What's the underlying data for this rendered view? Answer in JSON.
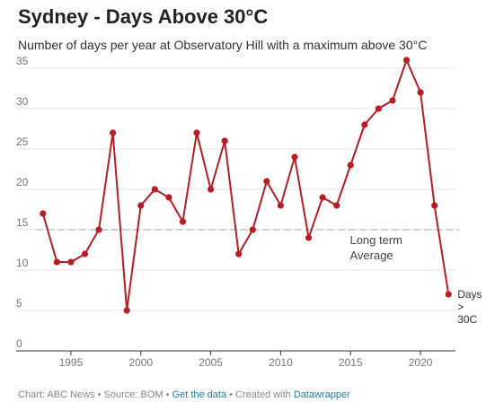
{
  "header": {
    "title": "Sydney - Days Above 30°C",
    "subtitle": "Number of days per year at Observatory Hill with a maximum above 30°C"
  },
  "footer": {
    "prefix": "Chart: ABC News • Source: BOM • ",
    "get_data": "Get the data",
    "middle": " • Created with ",
    "datawrapper": "Datawrapper"
  },
  "colors": {
    "line": "#b71d22",
    "reference": "#d0d0d0",
    "grid": "#e4e4e4",
    "link": "#1d81a2"
  },
  "chart_data": {
    "type": "line",
    "title": "Sydney - Days Above 30°C",
    "subtitle": "Number of days per year at Observatory Hill with a maximum above 30°C",
    "x": [
      1993,
      1994,
      1995,
      1996,
      1997,
      1998,
      1999,
      2000,
      2001,
      2002,
      2003,
      2004,
      2005,
      2006,
      2007,
      2008,
      2009,
      2010,
      2011,
      2012,
      2013,
      2014,
      2015,
      2016,
      2017,
      2018,
      2019,
      2020,
      2021,
      2022
    ],
    "series": [
      {
        "name": "Days > 30C",
        "values": [
          17,
          11,
          11,
          12,
          15,
          27,
          5,
          18,
          20,
          19,
          16,
          27,
          20,
          26,
          12,
          15,
          21,
          18,
          24,
          14,
          19,
          18,
          23,
          28,
          30,
          31,
          36,
          32,
          18,
          7
        ]
      }
    ],
    "reference_line": {
      "value": 15,
      "label_lines": [
        "Long term",
        "Average"
      ]
    },
    "end_label_lines": [
      "Days",
      ">",
      "30C"
    ],
    "xlim": [
      1992.5,
      2022.5
    ],
    "ylim": [
      0,
      35
    ],
    "x_ticks": [
      1995,
      2000,
      2005,
      2010,
      2015,
      2020
    ],
    "y_ticks": [
      0,
      5,
      10,
      15,
      20,
      25,
      30,
      35
    ],
    "grid": true,
    "xlabel": "",
    "ylabel": ""
  }
}
